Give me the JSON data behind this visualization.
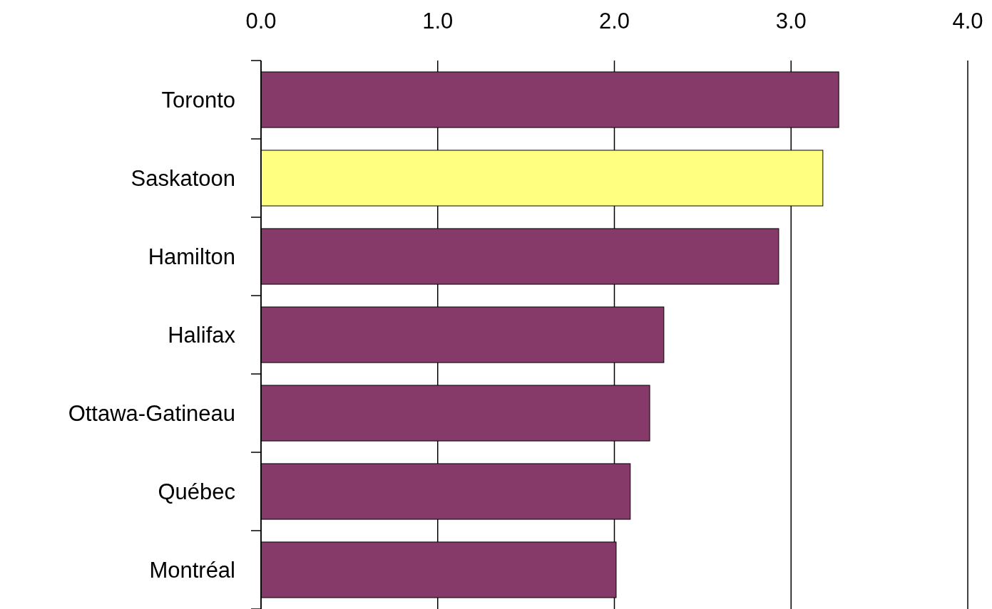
{
  "chart_data": {
    "type": "bar",
    "orientation": "horizontal",
    "categories": [
      "Toronto",
      "Saskatoon",
      "Hamilton",
      "Halifax",
      "Ottawa-Gatineau",
      "Québec",
      "Montréal"
    ],
    "values": [
      3.27,
      3.18,
      2.93,
      2.28,
      2.2,
      2.09,
      2.01
    ],
    "colors": [
      "#853a69",
      "#ffff80",
      "#853a69",
      "#853a69",
      "#853a69",
      "#853a69",
      "#853a69"
    ],
    "xlim": [
      0,
      4
    ],
    "xticks": [
      {
        "value": 0,
        "label": "0.0"
      },
      {
        "value": 1,
        "label": "1.0"
      },
      {
        "value": 2,
        "label": "2.0"
      },
      {
        "value": 3,
        "label": "3.0"
      },
      {
        "value": 4,
        "label": "4.0"
      }
    ],
    "grid": "x"
  }
}
